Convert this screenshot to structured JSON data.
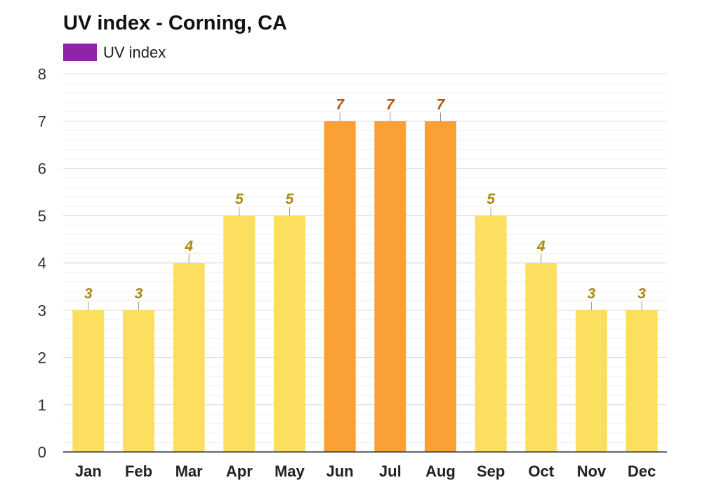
{
  "chart_data": {
    "type": "bar",
    "title": "UV index - Corning, CA",
    "xlabel": "",
    "ylabel": "",
    "categories": [
      "Jan",
      "Feb",
      "Mar",
      "Apr",
      "May",
      "Jun",
      "Jul",
      "Aug",
      "Sep",
      "Oct",
      "Nov",
      "Dec"
    ],
    "series": [
      {
        "name": "UV index",
        "values": [
          3,
          3,
          4,
          5,
          5,
          7,
          7,
          7,
          5,
          4,
          3,
          3
        ]
      }
    ],
    "data_labels": [
      "3",
      "3",
      "4",
      "5",
      "5",
      "7",
      "7",
      "7",
      "5",
      "4",
      "3",
      "3"
    ],
    "y_ticks": [
      "0",
      "1",
      "2",
      "3",
      "4",
      "5",
      "6",
      "7",
      "8"
    ],
    "ylim": [
      0,
      8
    ],
    "grid": true,
    "legend_position": "top-left",
    "colors": {
      "legend_swatch": "#8e24aa",
      "moderate_bar": "#fcdf5f",
      "high_bar": "#fba034",
      "moderate_label": "#a88a10",
      "high_label": "#a8570b",
      "grid_major": "#dddddd",
      "grid_minor": "#f2f2f2",
      "axis": "#333333"
    }
  }
}
